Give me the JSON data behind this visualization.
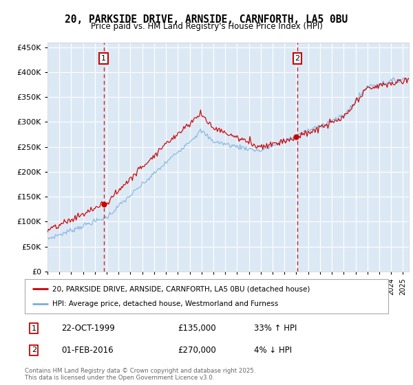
{
  "title": "20, PARKSIDE DRIVE, ARNSIDE, CARNFORTH, LA5 0BU",
  "subtitle": "Price paid vs. HM Land Registry's House Price Index (HPI)",
  "property_label": "20, PARKSIDE DRIVE, ARNSIDE, CARNFORTH, LA5 0BU (detached house)",
  "hpi_label": "HPI: Average price, detached house, Westmorland and Furness",
  "transaction1_date": "22-OCT-1999",
  "transaction1_price": "£135,000",
  "transaction1_pct": "33% ↑ HPI",
  "transaction2_date": "01-FEB-2016",
  "transaction2_price": "£270,000",
  "transaction2_pct": "4% ↓ HPI",
  "footer": "Contains HM Land Registry data © Crown copyright and database right 2025.\nThis data is licensed under the Open Government Licence v3.0.",
  "property_color": "#cc0000",
  "hpi_color": "#7aaddb",
  "background_color": "#dce9f5",
  "plot_background": "#ffffff",
  "grid_color": "#ffffff",
  "vline_color": "#cc0000",
  "annotation_box_color": "#cc0000",
  "ylim": [
    0,
    460000
  ],
  "yticks": [
    0,
    50000,
    100000,
    150000,
    200000,
    250000,
    300000,
    350000,
    400000,
    450000
  ]
}
